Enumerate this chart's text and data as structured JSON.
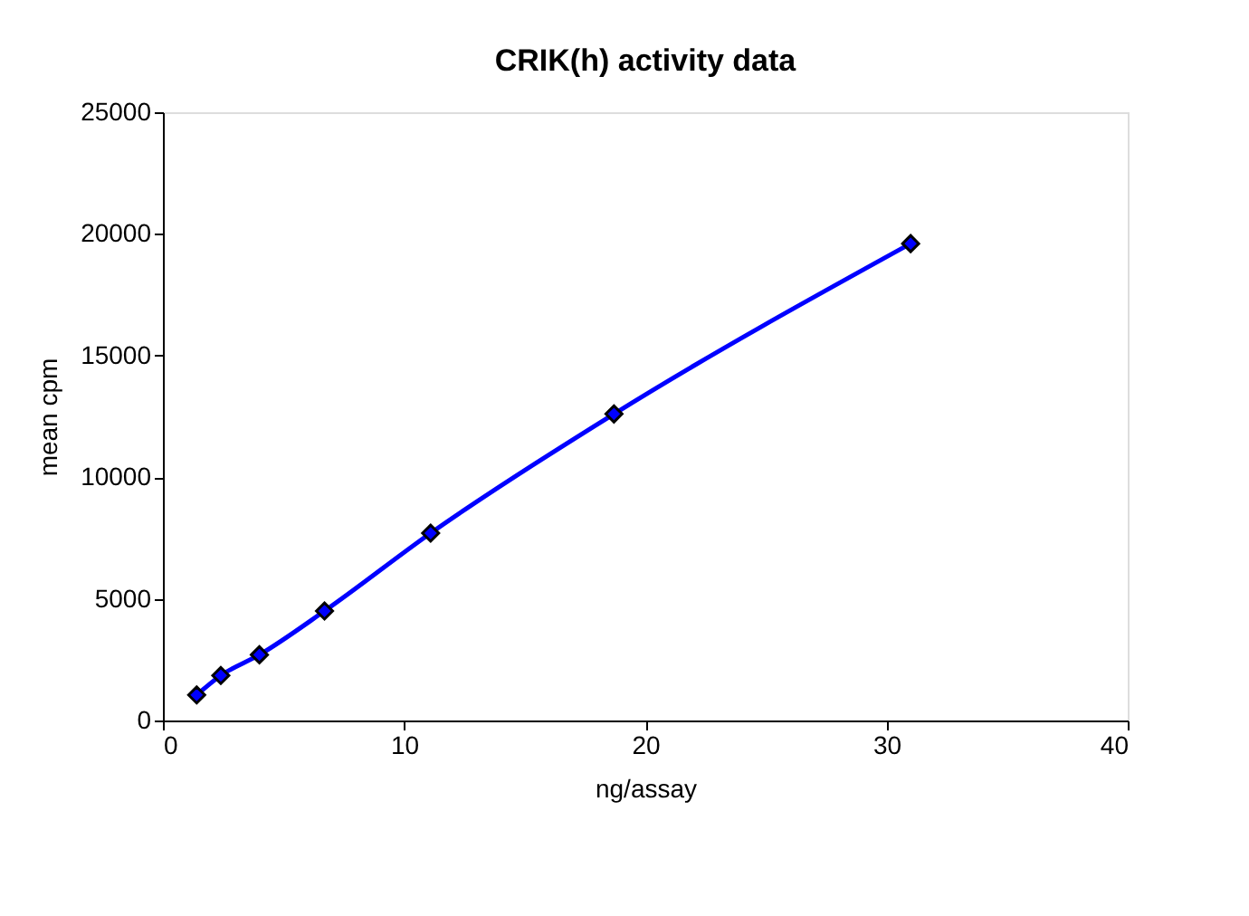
{
  "chart_data": {
    "type": "line",
    "title": "CRIK(h) activity data",
    "xlabel": "ng/assay",
    "ylabel": "mean cpm",
    "x": [
      1.4,
      2.4,
      4.0,
      6.7,
      11.1,
      18.7,
      31.0
    ],
    "series": [
      {
        "color": "#0000ff",
        "values": [
          1050,
          1850,
          2700,
          4500,
          7700,
          12600,
          19600
        ]
      }
    ],
    "xlim": [
      0,
      40
    ],
    "xticks": [
      0,
      10,
      20,
      30,
      40
    ],
    "ylim": [
      0,
      25000
    ],
    "yticks": [
      0,
      5000,
      10000,
      15000,
      20000,
      25000
    ],
    "marker": "diamond",
    "line_style": "solid",
    "grid": false,
    "legend": false
  }
}
